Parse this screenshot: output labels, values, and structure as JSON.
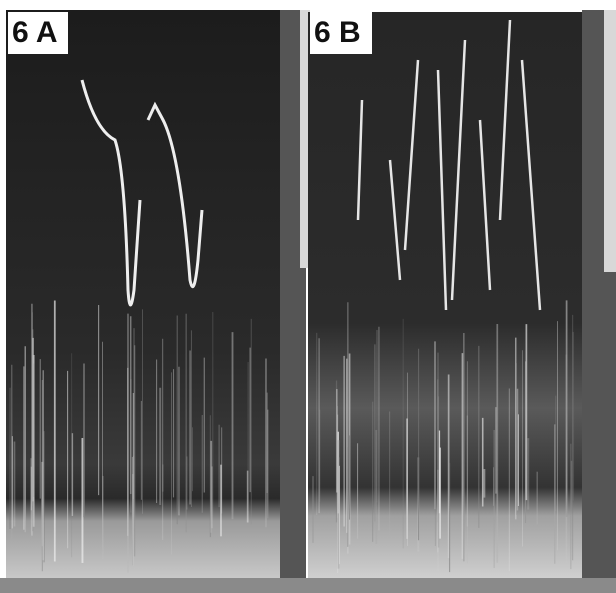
{
  "panels": [
    {
      "label": "6 A"
    },
    {
      "label": "6 B"
    }
  ]
}
